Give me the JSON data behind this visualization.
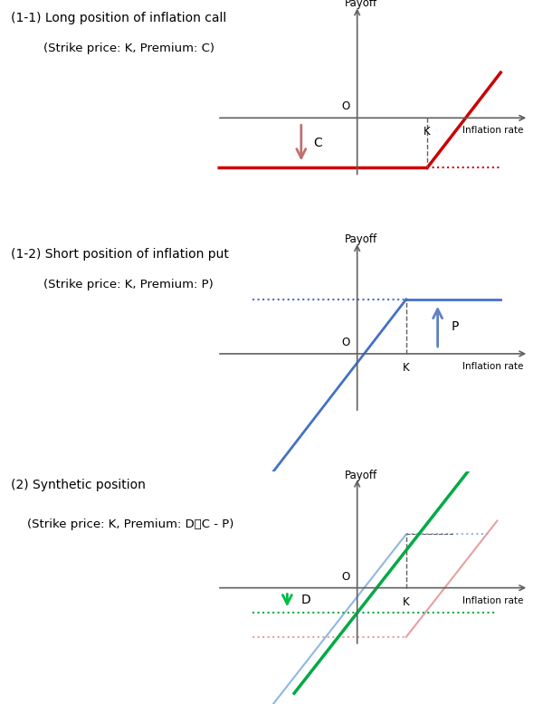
{
  "chart1": {
    "title1": "(1-1) Long position of inflation call",
    "title2": "(Strike price: K, Premium: C)",
    "payoff_label": "Payoff",
    "xaxis_label": "Inflation rate",
    "origin_label": "O",
    "strike_label": "K",
    "premium_label": "C",
    "line_color": "#cc0000",
    "dotted_color": "#cc0000",
    "arrow_color": "#c07070",
    "K": 1.0,
    "C": -0.55,
    "xlim": [
      -2.0,
      2.5
    ],
    "ylim": [
      -1.3,
      1.3
    ]
  },
  "chart2": {
    "title1": "(1-2) Short position of inflation put",
    "title2": "(Strike price: K, Premium: P)",
    "payoff_label": "Payoff",
    "xaxis_label": "Inflation rate",
    "origin_label": "O",
    "strike_label": "K",
    "premium_label": "P",
    "line_color": "#4472c4",
    "dotted_color": "#4472c4",
    "arrow_color": "#6080c0",
    "K": 0.7,
    "P": 0.6,
    "xlim": [
      -2.0,
      2.5
    ],
    "ylim": [
      -1.3,
      1.3
    ]
  },
  "chart3": {
    "title1": "(2) Synthetic position",
    "title2": "(Strike price: K, Premium: D＝C - P)",
    "payoff_label": "Payoff",
    "xaxis_label": "Inflation rate",
    "origin_label": "O",
    "strike_label": "K",
    "premium_label": "D",
    "green_color": "#00aa44",
    "red_color": "#e8a0a0",
    "blue_color": "#90b8e0",
    "arrow_color": "#00bb44",
    "dotted_color": "#00aa44",
    "K": 0.7,
    "D": -0.28,
    "C": -0.55,
    "P": 0.6,
    "xlim": [
      -2.0,
      2.5
    ],
    "ylim": [
      -1.3,
      1.3
    ]
  },
  "bg_color": "#ffffff",
  "text_color": "#000000",
  "axis_color": "#606060",
  "fig_width": 6.0,
  "fig_height": 7.78
}
